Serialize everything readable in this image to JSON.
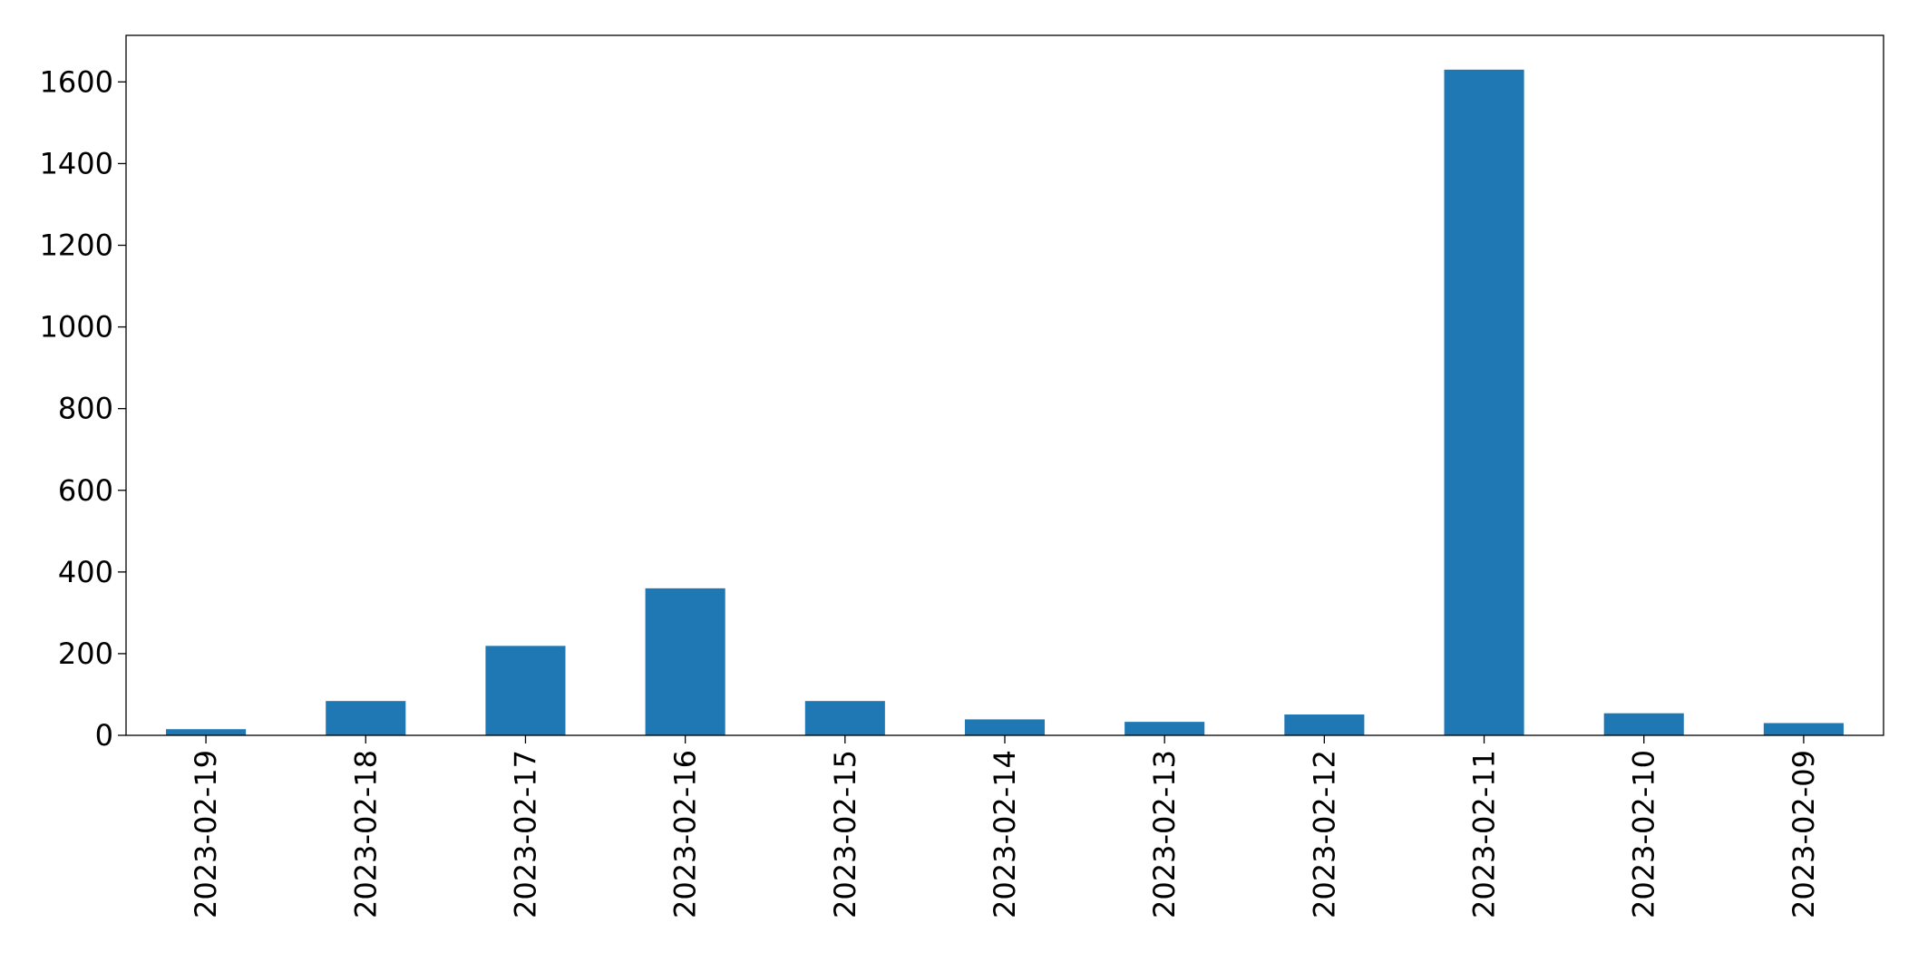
{
  "chart_data": {
    "type": "bar",
    "categories": [
      "2023-02-19",
      "2023-02-18",
      "2023-02-17",
      "2023-02-16",
      "2023-02-15",
      "2023-02-14",
      "2023-02-13",
      "2023-02-12",
      "2023-02-11",
      "2023-02-10",
      "2023-02-09"
    ],
    "values": [
      15,
      84,
      219,
      360,
      84,
      39,
      33,
      51,
      1630,
      54,
      30
    ],
    "color": "#1f77b4",
    "ylim": [
      0,
      1714
    ],
    "yticks": [
      0,
      200,
      400,
      600,
      800,
      1000,
      1200,
      1400,
      1600
    ],
    "grid": false
  }
}
